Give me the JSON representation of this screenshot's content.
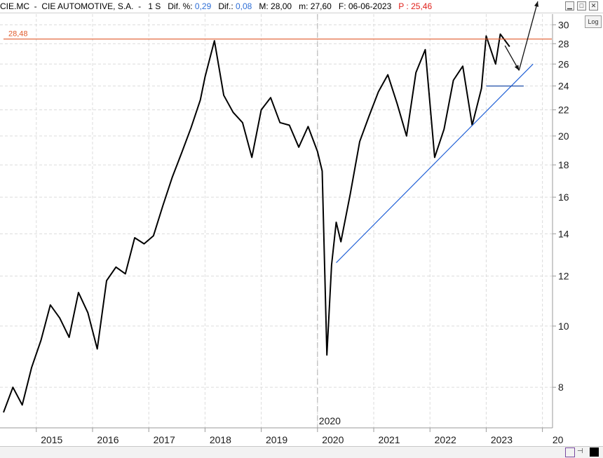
{
  "header": {
    "ticker": "CIE.MC",
    "name": "CIE AUTOMOTIVE, S.A.",
    "period": "1 S",
    "dif_pct_label": "Dif. %:",
    "dif_pct_value": "0,29",
    "dif_label": "Dif.:",
    "dif_value": "0,08",
    "max_label": "M: 28,00",
    "min_label": "m: 27,60",
    "date_label": "F: 06-06-2023",
    "price_prefix": "P :",
    "price_value": "25,46"
  },
  "controls": {
    "log_button": "Log"
  },
  "colors": {
    "price": "#000000",
    "resistance": "#e05a2b",
    "trendline": "#1f5fd6",
    "support": "#1f4fa8",
    "dif_value": "#2f6fd6",
    "price_value": "#e0201a"
  },
  "chart_data": {
    "type": "line",
    "title": "CIE.MC - CIE AUTOMOTIVE, S.A.",
    "xlabel": "",
    "ylabel": "",
    "y_scale": "log",
    "ylim": [
      6.9,
      31.2
    ],
    "xlim": [
      "2014-06",
      "2024-03"
    ],
    "y_ticks": [
      "30",
      "28",
      "26",
      "24",
      "22",
      "20",
      "18",
      "16",
      "14",
      "12",
      "10",
      "8"
    ],
    "x_ticks": [
      "2015",
      "2016",
      "2017",
      "2018",
      "2019",
      "2020",
      "2021",
      "2022",
      "2023",
      "20"
    ],
    "cursor_label": "2020",
    "grid": true,
    "series": [
      {
        "values_x": [
          "2014-06",
          "2014-08",
          "2014-10",
          "2014-12",
          "2015-02",
          "2015-04",
          "2015-06",
          "2015-08",
          "2015-10",
          "2015-12",
          "2016-02",
          "2016-04",
          "2016-06",
          "2016-08",
          "2016-10",
          "2016-12",
          "2017-02",
          "2017-04",
          "2017-06",
          "2017-08",
          "2017-10",
          "2017-12",
          "2018-01",
          "2018-03",
          "2018-05",
          "2018-07",
          "2018-09",
          "2018-11",
          "2019-01",
          "2019-03",
          "2019-05",
          "2019-07",
          "2019-09",
          "2019-11",
          "2020-01",
          "2020-02",
          "2020-03",
          "2020-04",
          "2020-05",
          "2020-06",
          "2020-08",
          "2020-10",
          "2020-12",
          "2021-02",
          "2021-04",
          "2021-06",
          "2021-08",
          "2021-10",
          "2021-12",
          "2022-02",
          "2022-04",
          "2022-06",
          "2022-08",
          "2022-10",
          "2022-12",
          "2023-01",
          "2023-03",
          "2023-04",
          "2023-06"
        ],
        "values": [
          7.3,
          8.0,
          7.5,
          8.6,
          9.5,
          10.8,
          10.3,
          9.6,
          11.3,
          10.5,
          9.2,
          11.8,
          12.4,
          12.1,
          13.8,
          13.5,
          13.9,
          15.5,
          17.2,
          18.8,
          20.6,
          22.8,
          24.8,
          28.3,
          23.2,
          21.8,
          21.0,
          18.5,
          22.0,
          23.0,
          21.0,
          20.8,
          19.2,
          20.7,
          18.9,
          17.6,
          9.0,
          12.5,
          14.6,
          13.6,
          16.2,
          19.6,
          21.5,
          23.5,
          25.0,
          22.5,
          20.0,
          25.2,
          27.4,
          18.5,
          20.5,
          24.5,
          25.8,
          20.8,
          23.8,
          28.8,
          26.0,
          29.0,
          27.7
        ]
      }
    ],
    "annotations": {
      "resistance": {
        "label": "28,48",
        "value": 28.48
      },
      "trendline": {
        "from": [
          "2020-05",
          12.6
        ],
        "to": [
          "2023-11",
          26.0
        ]
      },
      "support": {
        "from": [
          "2023-01",
          24.0
        ],
        "to": [
          "2023-09",
          24.0
        ]
      },
      "arrows": [
        {
          "from": [
            "2023-05",
            27.8
          ],
          "to": [
            "2023-08",
            25.4
          ]
        },
        {
          "from": [
            "2023-08",
            25.4
          ],
          "to": [
            "2023-12",
            34.0
          ]
        }
      ]
    }
  }
}
